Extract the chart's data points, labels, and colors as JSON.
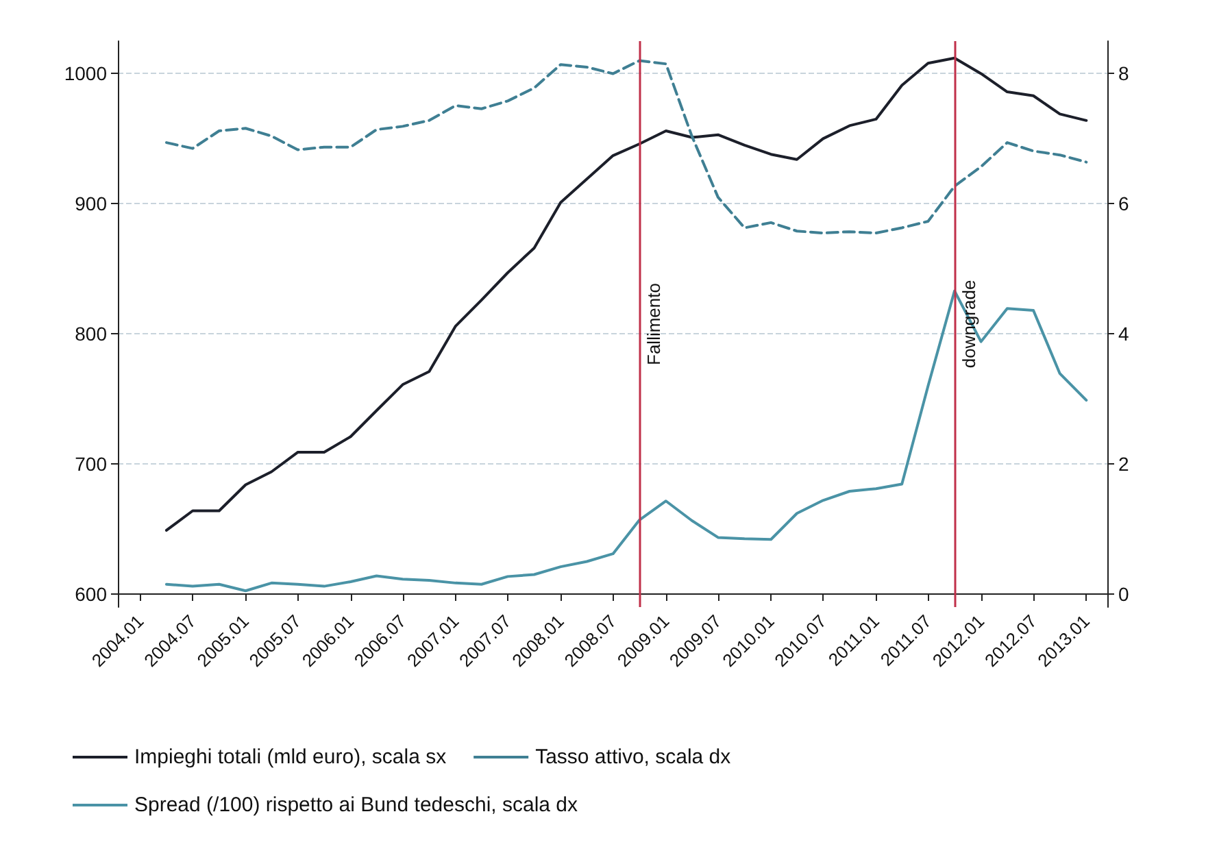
{
  "chart_data": {
    "type": "line",
    "x": [
      "2004-04",
      "2004-07",
      "2004-10",
      "2005-01",
      "2005-04",
      "2005-07",
      "2005-10",
      "2006-01",
      "2006-04",
      "2006-07",
      "2006-10",
      "2007-01",
      "2007-04",
      "2007-07",
      "2007-10",
      "2008-01",
      "2008-04",
      "2008-07",
      "2008-10",
      "2009-01",
      "2009-04",
      "2009-07",
      "2009-10",
      "2010-01",
      "2010-04",
      "2010-07",
      "2010-10",
      "2011-01",
      "2011-04",
      "2011-07",
      "2011-10",
      "2012-01",
      "2012-04",
      "2012-07",
      "2012-10",
      "2013-01"
    ],
    "series": [
      {
        "name": "Impieghi totali (mld euro), scala sx",
        "color": "#1c1f2a",
        "line_style": "solid",
        "values": [
          649,
          664,
          664,
          684,
          694,
          709,
          709,
          721,
          741,
          761,
          771,
          806,
          826,
          847,
          866,
          901,
          919,
          937,
          946,
          956,
          951,
          953,
          945,
          938,
          934,
          950,
          960,
          965,
          991,
          1008,
          1012,
          1000,
          986,
          983,
          969,
          964
        ]
      },
      {
        "name": "Tasso attivo, scala dx",
        "color": "#3f7f93",
        "axis": "y2",
        "line_style": "dashed",
        "values": [
          6.94,
          6.85,
          7.12,
          7.16,
          7.04,
          6.83,
          6.87,
          6.87,
          7.14,
          7.19,
          7.28,
          7.51,
          7.46,
          7.58,
          7.78,
          8.14,
          8.1,
          8.0,
          8.2,
          8.15,
          7.04,
          6.1,
          5.63,
          5.71,
          5.58,
          5.55,
          5.57,
          5.55,
          5.63,
          5.73,
          6.27,
          6.57,
          6.94,
          6.81,
          6.75,
          6.64
        ]
      },
      {
        "name": "Spread (/100) rispetto ai Bund tedeschi, scala dx",
        "color": "#4a93a6",
        "axis": "y2",
        "line_style": "solid",
        "values": [
          0.15,
          0.12,
          0.15,
          0.05,
          0.17,
          0.15,
          0.12,
          0.19,
          0.28,
          0.23,
          0.21,
          0.17,
          0.15,
          0.27,
          0.3,
          0.42,
          0.5,
          0.62,
          1.14,
          1.43,
          1.13,
          0.87,
          0.85,
          0.84,
          1.24,
          1.44,
          1.58,
          1.62,
          1.69,
          3.2,
          4.66,
          3.88,
          4.39,
          4.36,
          3.39,
          2.98
        ]
      }
    ],
    "xlim": [
      "2003-10-15",
      "2013-03-15"
    ],
    "xticks": [
      {
        "value": "2004-01",
        "label": "2004.01"
      },
      {
        "value": "2004-07",
        "label": "2004.07"
      },
      {
        "value": "2005-01",
        "label": "2005.01"
      },
      {
        "value": "2005-07",
        "label": "2005.07"
      },
      {
        "value": "2006-01",
        "label": "2006.01"
      },
      {
        "value": "2006-07",
        "label": "2006.07"
      },
      {
        "value": "2007-01",
        "label": "2007.01"
      },
      {
        "value": "2007-07",
        "label": "2007.07"
      },
      {
        "value": "2008-01",
        "label": "2008.01"
      },
      {
        "value": "2008-07",
        "label": "2008.07"
      },
      {
        "value": "2009-01",
        "label": "2009.01"
      },
      {
        "value": "2009-07",
        "label": "2009.07"
      },
      {
        "value": "2010-01",
        "label": "2010.01"
      },
      {
        "value": "2010-07",
        "label": "2010.07"
      },
      {
        "value": "2011-01",
        "label": "2011.01"
      },
      {
        "value": "2011-07",
        "label": "2011.07"
      },
      {
        "value": "2012-01",
        "label": "2012.01"
      },
      {
        "value": "2012-07",
        "label": "2012.07"
      },
      {
        "value": "2013-01",
        "label": "2013.01"
      }
    ],
    "ylim": [
      590,
      1025
    ],
    "yticks": [
      600,
      700,
      800,
      900,
      1000
    ],
    "y2lim": [
      -0.2,
      8.5
    ],
    "y2ticks": [
      0,
      2,
      4,
      6,
      8
    ],
    "ref_lines": [
      {
        "axis": "x",
        "value": "2008-10",
        "label": "Fallimento",
        "color": "#c0304a"
      },
      {
        "axis": "x",
        "value": "2011-10",
        "label": "downgrade",
        "color": "#c0304a"
      }
    ],
    "grid": "y",
    "legend": "bottom",
    "marker": "none"
  }
}
